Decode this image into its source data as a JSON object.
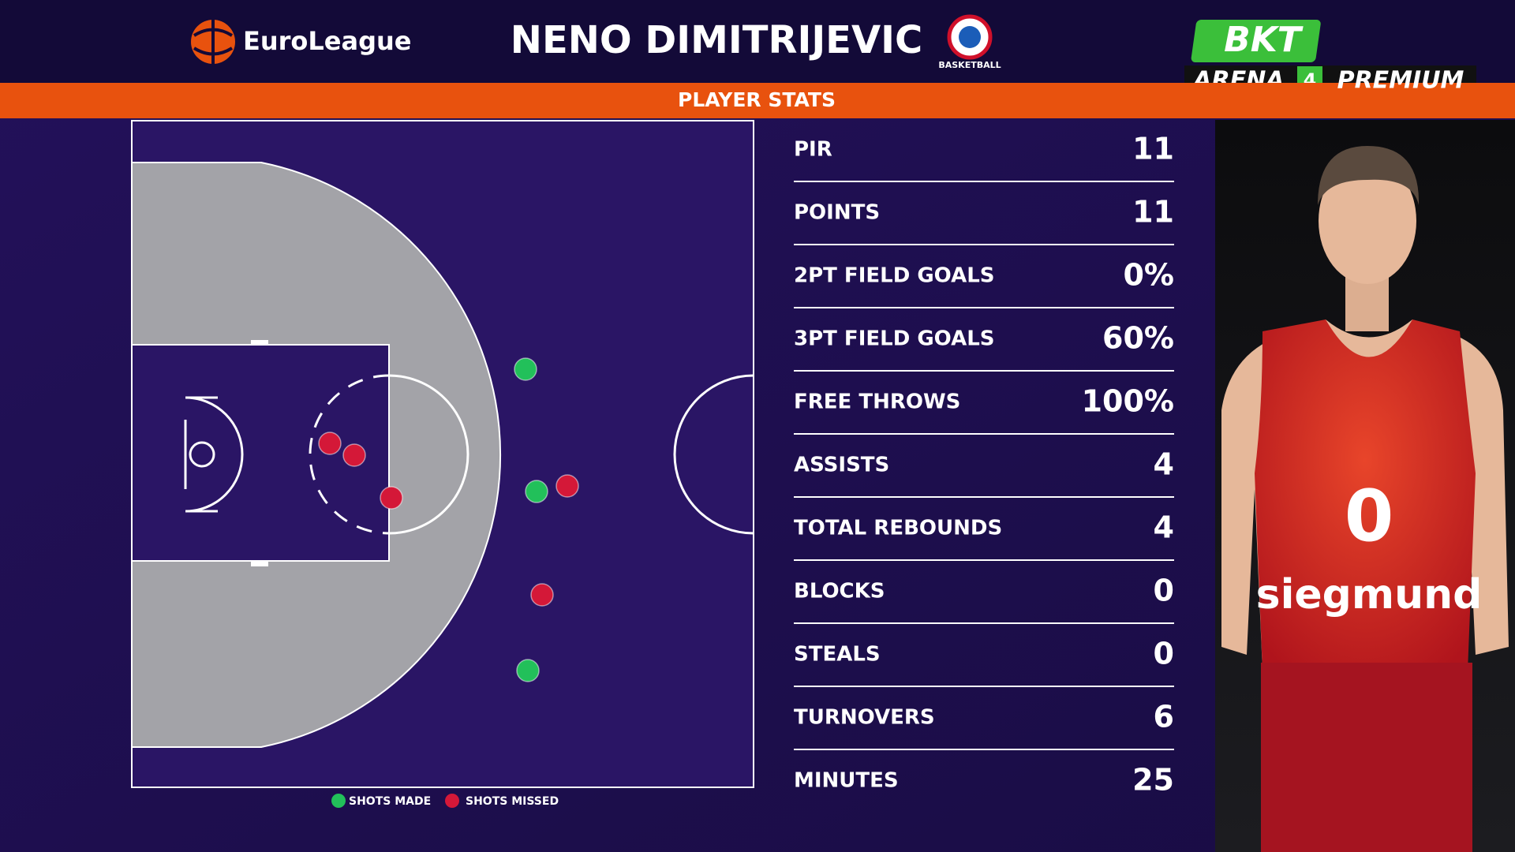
{
  "header": {
    "brand": "EuroLeague",
    "player": "NENO DIMITRIJEVIC",
    "club_caption": "BASKETBALL"
  },
  "channel": {
    "logo": "BKT",
    "arena": "ARENA",
    "number": "4",
    "tier": "PREMIUM"
  },
  "banner": "PLAYER STATS",
  "stats": [
    {
      "label": "PIR",
      "value": "11"
    },
    {
      "label": "POINTS",
      "value": "11"
    },
    {
      "label": "2PT FIELD GOALS",
      "value": "0%"
    },
    {
      "label": "3PT FIELD GOALS",
      "value": "60%"
    },
    {
      "label": "FREE THROWS",
      "value": "100%"
    },
    {
      "label": "ASSISTS",
      "value": "4"
    },
    {
      "label": "TOTAL REBOUNDS",
      "value": "4"
    },
    {
      "label": "BLOCKS",
      "value": "0"
    },
    {
      "label": "STEALS",
      "value": "0"
    },
    {
      "label": "TURNOVERS",
      "value": "6"
    },
    {
      "label": "MINUTES",
      "value": "25"
    }
  ],
  "legend": {
    "made": "SHOTS MADE",
    "missed": "SHOTS MISSED"
  },
  "photo": {
    "jersey_number": "0",
    "sponsor": "siegmund"
  }
}
